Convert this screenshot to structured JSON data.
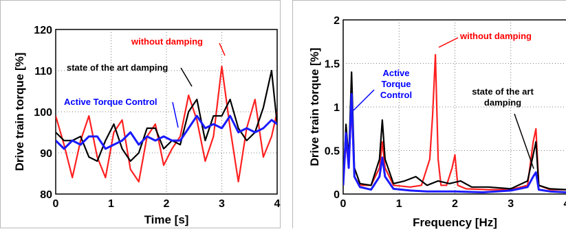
{
  "chart_data": [
    {
      "type": "line",
      "xlabel": "Time [s]",
      "ylabel": "Drive train torque [%]",
      "xlim": [
        0,
        4
      ],
      "ylim": [
        80,
        120
      ],
      "xticks": [
        "0",
        "1",
        "2",
        "3",
        "4"
      ],
      "yticks": [
        "80",
        "90",
        "100",
        "110",
        "120"
      ],
      "grid": true,
      "annotations": [
        {
          "text": "without damping",
          "color": "#ff0000"
        },
        {
          "text": "state of the art damping",
          "color": "#000000"
        },
        {
          "text": "Active Torque Control",
          "color": "#0000ff"
        }
      ],
      "series": [
        {
          "name": "without damping",
          "color": "#ff2020",
          "x": [
            0,
            0.15,
            0.3,
            0.45,
            0.6,
            0.75,
            0.9,
            1.05,
            1.2,
            1.35,
            1.5,
            1.65,
            1.8,
            1.95,
            2.1,
            2.25,
            2.4,
            2.55,
            2.7,
            2.85,
            3.0,
            3.15,
            3.3,
            3.45,
            3.6,
            3.75,
            3.9,
            4.0
          ],
          "values": [
            99,
            92,
            84,
            93,
            99,
            89,
            84,
            95,
            98,
            86,
            83,
            94,
            97,
            87,
            91,
            94,
            104,
            98,
            88,
            94,
            111,
            96,
            83,
            96,
            103,
            89,
            94,
            100
          ]
        },
        {
          "name": "state of the art damping",
          "color": "#000000",
          "x": [
            0,
            0.15,
            0.3,
            0.45,
            0.6,
            0.75,
            0.9,
            1.05,
            1.2,
            1.35,
            1.5,
            1.65,
            1.8,
            1.95,
            2.1,
            2.25,
            2.4,
            2.55,
            2.7,
            2.85,
            3.0,
            3.15,
            3.3,
            3.45,
            3.6,
            3.75,
            3.9,
            4.0
          ],
          "values": [
            95,
            93,
            93,
            94,
            89,
            88,
            93,
            97,
            91,
            88,
            90,
            96,
            96,
            91,
            93,
            92,
            100,
            103,
            93,
            99,
            99,
            103,
            96,
            93,
            95,
            101,
            110,
            97
          ]
        },
        {
          "name": "Active Torque Control",
          "color": "#1a1aff",
          "x": [
            0,
            0.15,
            0.3,
            0.45,
            0.6,
            0.75,
            0.9,
            1.05,
            1.2,
            1.35,
            1.5,
            1.65,
            1.8,
            1.95,
            2.1,
            2.25,
            2.4,
            2.55,
            2.7,
            2.85,
            3.0,
            3.15,
            3.3,
            3.45,
            3.6,
            3.75,
            3.9,
            4.0
          ],
          "values": [
            93,
            91,
            93,
            92,
            94,
            94,
            91,
            92,
            93,
            95,
            92,
            94,
            93,
            94,
            93,
            93,
            96,
            99,
            96,
            97,
            96,
            99,
            95,
            96,
            95,
            96,
            98,
            97
          ]
        }
      ]
    },
    {
      "type": "line",
      "xlabel": "Frequency [Hz]",
      "ylabel": "Drive train torque [%]",
      "xlim": [
        0,
        4
      ],
      "ylim": [
        0,
        2
      ],
      "xticks": [
        "0",
        "1",
        "2",
        "3",
        "4"
      ],
      "yticks": [
        "0",
        "0.5",
        "1",
        "1.5",
        "2"
      ],
      "grid": true,
      "annotations": [
        {
          "text": "without damping",
          "color": "#ff0000"
        },
        {
          "text": "Active Torque Control",
          "color": "#0000ff"
        },
        {
          "text": "state of the art damping",
          "color": "#000000"
        }
      ],
      "series": [
        {
          "name": "without damping",
          "color": "#ff2020",
          "x": [
            0,
            0.05,
            0.1,
            0.15,
            0.2,
            0.3,
            0.5,
            0.65,
            0.7,
            0.75,
            0.9,
            1.2,
            1.4,
            1.55,
            1.6,
            1.65,
            1.7,
            1.75,
            1.85,
            1.95,
            2.0,
            2.05,
            2.2,
            2.6,
            3.0,
            3.3,
            3.4,
            3.45,
            3.5,
            3.7,
            4.0
          ],
          "values": [
            0.1,
            0.6,
            0.3,
            1.0,
            0.2,
            0.1,
            0.1,
            0.3,
            0.6,
            0.3,
            0.1,
            0.08,
            0.1,
            0.4,
            0.9,
            1.6,
            0.4,
            0.1,
            0.1,
            0.3,
            0.45,
            0.1,
            0.06,
            0.05,
            0.05,
            0.1,
            0.6,
            0.75,
            0.1,
            0.05,
            0.05
          ]
        },
        {
          "name": "state of the art damping",
          "color": "#000000",
          "x": [
            0,
            0.05,
            0.1,
            0.15,
            0.2,
            0.3,
            0.5,
            0.65,
            0.7,
            0.75,
            0.9,
            1.1,
            1.3,
            1.5,
            1.7,
            1.9,
            2.1,
            2.3,
            2.6,
            3.0,
            3.3,
            3.4,
            3.45,
            3.5,
            3.7,
            4.0
          ],
          "values": [
            0.1,
            0.8,
            0.4,
            1.4,
            0.3,
            0.12,
            0.1,
            0.4,
            0.85,
            0.4,
            0.12,
            0.15,
            0.2,
            0.1,
            0.15,
            0.12,
            0.15,
            0.08,
            0.08,
            0.06,
            0.15,
            0.45,
            0.6,
            0.1,
            0.06,
            0.05
          ]
        },
        {
          "name": "Active Torque Control",
          "color": "#1a1aff",
          "x": [
            0,
            0.05,
            0.1,
            0.15,
            0.2,
            0.3,
            0.5,
            0.65,
            0.7,
            0.75,
            0.9,
            1.2,
            1.5,
            2.0,
            2.5,
            3.0,
            3.3,
            3.4,
            3.45,
            3.5,
            3.7,
            4.0
          ],
          "values": [
            0.1,
            0.7,
            0.3,
            1.15,
            0.2,
            0.08,
            0.05,
            0.2,
            0.42,
            0.2,
            0.06,
            0.04,
            0.03,
            0.03,
            0.02,
            0.04,
            0.08,
            0.2,
            0.25,
            0.05,
            0.03,
            0.02
          ]
        }
      ]
    }
  ]
}
